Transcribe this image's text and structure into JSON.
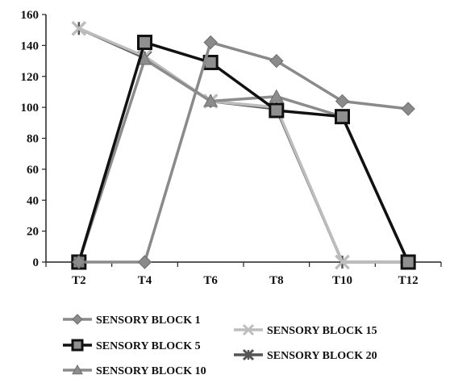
{
  "chart_data": {
    "type": "line",
    "categories": [
      "T2",
      "T4",
      "T6",
      "T8",
      "T10",
      "T12"
    ],
    "ylim": [
      0,
      160
    ],
    "yticks": [
      0,
      20,
      40,
      60,
      80,
      100,
      120,
      140,
      160
    ],
    "grid": false,
    "legend_position": "bottom",
    "series": [
      {
        "name": "SENSORY BLOCK 1",
        "values": [
          0,
          0,
          142,
          130,
          104,
          99
        ],
        "color": "#8a8a8a",
        "marker": "diamond"
      },
      {
        "name": "SENSORY BLOCK 5",
        "values": [
          0,
          142,
          129,
          98,
          94,
          0
        ],
        "color": "#111111",
        "marker": "square"
      },
      {
        "name": "SENSORY BLOCK 10",
        "values": [
          0,
          131,
          104,
          107,
          94,
          0
        ],
        "color": "#8c8c8c",
        "marker": "triangle"
      },
      {
        "name": "SENSORY BLOCK 15",
        "values": [
          151,
          133,
          104,
          100,
          0,
          0
        ],
        "color": "#bdbdbd",
        "marker": "star"
      },
      {
        "name": "SENSORY BLOCK 20",
        "values": [
          151,
          132,
          104,
          99,
          0,
          0
        ],
        "color": "#555555",
        "marker": "x-star"
      }
    ]
  }
}
